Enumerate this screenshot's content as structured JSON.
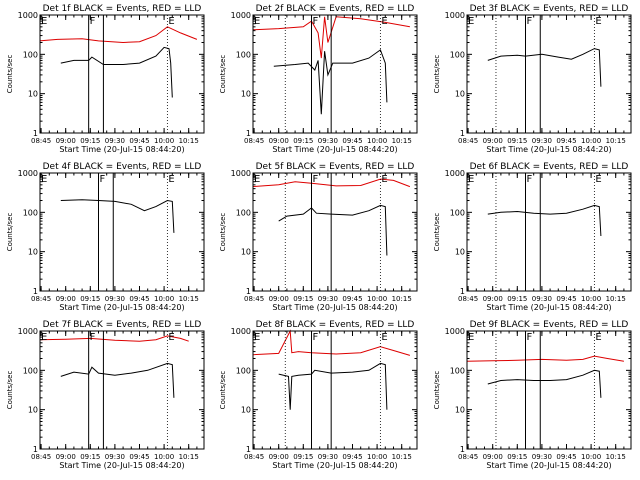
{
  "figure": {
    "background": "#ffffff",
    "axis_color": "#000000",
    "events_color": "#000000",
    "lld_color": "#dd0000"
  },
  "chart_data": [
    {
      "type": "line",
      "title": "Det 1f BLACK = Events, RED = LLD",
      "xlabel": "Start Time (20-Jul-15 08:44:20)",
      "ylabel": "Counts/sec",
      "yscale": "log",
      "ylim": [
        1,
        1000
      ],
      "y_ticks": [
        "1",
        "10",
        "100",
        "1000"
      ],
      "x_ticks": [
        "08:45",
        "09:00",
        "09:15",
        "09:30",
        "09:45",
        "10:00",
        "10:15"
      ],
      "xlim": [
        "08:44:20",
        "10:24:20"
      ],
      "markers": [
        {
          "label": "E",
          "time": "08:44:20",
          "style": "dotted"
        },
        {
          "label": "F",
          "time": "09:14:00",
          "style": "solid"
        },
        {
          "label": "",
          "time": "09:23:00",
          "style": "solid"
        },
        {
          "label": "E",
          "time": "10:02:00",
          "style": "dotted"
        }
      ],
      "series": [
        {
          "name": "Events",
          "color": "#000000",
          "x": [
            "08:57",
            "09:05",
            "09:14",
            "09:16",
            "09:23",
            "09:35",
            "09:45",
            "09:55",
            "10:00",
            "10:03",
            "10:04",
            "10:05"
          ],
          "y": [
            60,
            70,
            70,
            85,
            55,
            55,
            60,
            90,
            150,
            140,
            60,
            8
          ]
        },
        {
          "name": "LLD",
          "color": "#dd0000",
          "x": [
            "08:44",
            "08:55",
            "09:10",
            "09:20",
            "09:35",
            "09:45",
            "09:55",
            "10:02",
            "10:10",
            "10:20"
          ],
          "y": [
            220,
            240,
            250,
            220,
            200,
            210,
            300,
            500,
            350,
            240
          ]
        }
      ]
    },
    {
      "type": "line",
      "title": "Det 2f BLACK = Events, RED = LLD",
      "xlabel": "Start Time (20-Jul-15 08:44:20)",
      "ylabel": "Counts/sec",
      "yscale": "log",
      "ylim": [
        1,
        1000
      ],
      "y_ticks": [
        "1",
        "10",
        "100",
        "1000"
      ],
      "x_ticks": [
        "08:45",
        "09:00",
        "09:15",
        "09:30",
        "09:45",
        "10:00",
        "10:15"
      ],
      "xlim": [
        "08:44:20",
        "10:24:20"
      ],
      "markers": [
        {
          "label": "E",
          "time": "08:44:20",
          "style": "dotted"
        },
        {
          "label": "",
          "time": "09:04:00",
          "style": "dotted"
        },
        {
          "label": "F",
          "time": "09:20:00",
          "style": "solid"
        },
        {
          "label": "",
          "time": "09:32:00",
          "style": "solid"
        },
        {
          "label": "E",
          "time": "10:02:00",
          "style": "dotted"
        }
      ],
      "series": [
        {
          "name": "Events",
          "color": "#000000",
          "x": [
            "08:57",
            "09:10",
            "09:18",
            "09:22",
            "09:24",
            "09:26",
            "09:28",
            "09:30",
            "09:33",
            "09:45",
            "09:55",
            "10:02",
            "10:05",
            "10:06"
          ],
          "y": [
            50,
            55,
            60,
            40,
            70,
            3,
            120,
            30,
            60,
            60,
            80,
            130,
            60,
            6
          ]
        },
        {
          "name": "LLD",
          "color": "#dd0000",
          "x": [
            "08:44",
            "09:00",
            "09:15",
            "09:20",
            "09:24",
            "09:26",
            "09:28",
            "09:30",
            "09:35",
            "09:50",
            "10:05",
            "10:20"
          ],
          "y": [
            420,
            450,
            500,
            700,
            350,
            80,
            900,
            200,
            900,
            800,
            650,
            500
          ]
        }
      ]
    },
    {
      "type": "line",
      "title": "Det 3f BLACK = Events, RED = LLD",
      "xlabel": "Start Time (20-Jul-15 08:44:20)",
      "ylabel": "Counts/sec",
      "yscale": "log",
      "ylim": [
        1,
        1000
      ],
      "y_ticks": [
        "1",
        "10",
        "100",
        "1000"
      ],
      "x_ticks": [
        "08:45",
        "09:00",
        "09:15",
        "09:30",
        "09:45",
        "10:00",
        "10:15"
      ],
      "xlim": [
        "08:44:20",
        "10:24:20"
      ],
      "markers": [
        {
          "label": "E",
          "time": "08:44:20",
          "style": "dotted"
        },
        {
          "label": "",
          "time": "09:02:00",
          "style": "dotted"
        },
        {
          "label": "F",
          "time": "09:20:00",
          "style": "solid"
        },
        {
          "label": "",
          "time": "09:29:00",
          "style": "solid"
        },
        {
          "label": "E",
          "time": "10:02:00",
          "style": "dotted"
        }
      ],
      "series": [
        {
          "name": "Events",
          "color": "#000000",
          "x": [
            "08:57",
            "09:05",
            "09:15",
            "09:20",
            "09:30",
            "09:40",
            "09:48",
            "09:55",
            "10:02",
            "10:05",
            "10:06"
          ],
          "y": [
            70,
            90,
            95,
            90,
            100,
            85,
            75,
            100,
            140,
            130,
            15
          ]
        }
      ]
    },
    {
      "type": "line",
      "title": "Det 4f BLACK = Events, RED = LLD",
      "xlabel": "Start Time (20-Jul-15 08:44:20)",
      "ylabel": "Counts/sec",
      "yscale": "log",
      "ylim": [
        1,
        1000
      ],
      "y_ticks": [
        "1",
        "10",
        "100",
        "1000"
      ],
      "x_ticks": [
        "08:45",
        "09:00",
        "09:15",
        "09:30",
        "09:45",
        "10:00",
        "10:15"
      ],
      "xlim": [
        "08:44:20",
        "10:24:20"
      ],
      "markers": [
        {
          "label": "E",
          "time": "08:44:20",
          "style": "dotted"
        },
        {
          "label": "F",
          "time": "09:20:00",
          "style": "solid"
        },
        {
          "label": "",
          "time": "09:29:00",
          "style": "solid"
        },
        {
          "label": "E",
          "time": "10:02:00",
          "style": "dotted"
        }
      ],
      "series": [
        {
          "name": "Events",
          "color": "#000000",
          "x": [
            "08:57",
            "09:10",
            "09:20",
            "09:30",
            "09:40",
            "09:48",
            "09:55",
            "10:02",
            "10:05",
            "10:06"
          ],
          "y": [
            200,
            210,
            200,
            190,
            160,
            110,
            140,
            200,
            190,
            30
          ]
        }
      ]
    },
    {
      "type": "line",
      "title": "Det 5f BLACK = Events, RED = LLD",
      "xlabel": "Start Time (20-Jul-15 08:44:20)",
      "ylabel": "Counts/sec",
      "yscale": "log",
      "ylim": [
        1,
        1000
      ],
      "y_ticks": [
        "1",
        "10",
        "100",
        "1000"
      ],
      "x_ticks": [
        "08:45",
        "09:00",
        "09:15",
        "09:30",
        "09:45",
        "10:00",
        "10:15"
      ],
      "xlim": [
        "08:44:20",
        "10:24:20"
      ],
      "markers": [
        {
          "label": "E",
          "time": "08:44:20",
          "style": "dotted"
        },
        {
          "label": "",
          "time": "09:04:00",
          "style": "dotted"
        },
        {
          "label": "F",
          "time": "09:20:00",
          "style": "solid"
        },
        {
          "label": "",
          "time": "09:32:00",
          "style": "solid"
        },
        {
          "label": "E",
          "time": "10:02:00",
          "style": "dotted"
        }
      ],
      "series": [
        {
          "name": "Events",
          "color": "#000000",
          "x": [
            "09:00",
            "09:05",
            "09:15",
            "09:20",
            "09:23",
            "09:32",
            "09:45",
            "09:55",
            "10:02",
            "10:05",
            "10:06"
          ],
          "y": [
            60,
            80,
            90,
            130,
            95,
            90,
            85,
            110,
            150,
            140,
            8
          ]
        },
        {
          "name": "LLD",
          "color": "#dd0000",
          "x": [
            "08:44",
            "09:00",
            "09:10",
            "09:20",
            "09:35",
            "09:50",
            "10:02",
            "10:10",
            "10:20"
          ],
          "y": [
            450,
            500,
            600,
            550,
            470,
            480,
            700,
            650,
            450
          ]
        }
      ]
    },
    {
      "type": "line",
      "title": "Det 6f BLACK = Events, RED = LLD",
      "xlabel": "Start Time (20-Jul-15 08:44:20)",
      "ylabel": "Counts/sec",
      "yscale": "log",
      "ylim": [
        1,
        1000
      ],
      "y_ticks": [
        "1",
        "10",
        "100",
        "1000"
      ],
      "x_ticks": [
        "08:45",
        "09:00",
        "09:15",
        "09:30",
        "09:45",
        "10:00",
        "10:15"
      ],
      "xlim": [
        "08:44:20",
        "10:24:20"
      ],
      "markers": [
        {
          "label": "E",
          "time": "08:44:20",
          "style": "dotted"
        },
        {
          "label": "",
          "time": "09:02:00",
          "style": "dotted"
        },
        {
          "label": "F",
          "time": "09:20:00",
          "style": "solid"
        },
        {
          "label": "",
          "time": "09:29:00",
          "style": "solid"
        },
        {
          "label": "E",
          "time": "10:02:00",
          "style": "dotted"
        }
      ],
      "series": [
        {
          "name": "Events",
          "color": "#000000",
          "x": [
            "08:57",
            "09:05",
            "09:15",
            "09:25",
            "09:35",
            "09:45",
            "09:55",
            "10:02",
            "10:05",
            "10:06"
          ],
          "y": [
            90,
            100,
            105,
            95,
            90,
            95,
            120,
            150,
            140,
            25
          ]
        }
      ]
    },
    {
      "type": "line",
      "title": "Det 7f BLACK = Events, RED = LLD",
      "xlabel": "Start Time (20-Jul-15 08:44:20)",
      "ylabel": "Counts/sec",
      "yscale": "log",
      "ylim": [
        1,
        1000
      ],
      "y_ticks": [
        "1",
        "10",
        "100",
        "1000"
      ],
      "x_ticks": [
        "08:45",
        "09:00",
        "09:15",
        "09:30",
        "09:45",
        "10:00",
        "10:15"
      ],
      "xlim": [
        "08:44:20",
        "10:24:20"
      ],
      "markers": [
        {
          "label": "E",
          "time": "08:44:20",
          "style": "dotted"
        },
        {
          "label": "F",
          "time": "09:14:00",
          "style": "solid"
        },
        {
          "label": "",
          "time": "09:23:00",
          "style": "solid"
        },
        {
          "label": "E",
          "time": "10:02:00",
          "style": "dotted"
        }
      ],
      "series": [
        {
          "name": "Events",
          "color": "#000000",
          "x": [
            "08:57",
            "09:05",
            "09:14",
            "09:16",
            "09:20",
            "09:30",
            "09:40",
            "09:50",
            "10:02",
            "10:05",
            "10:06"
          ],
          "y": [
            70,
            90,
            80,
            120,
            85,
            75,
            85,
            100,
            150,
            140,
            20
          ]
        },
        {
          "name": "LLD",
          "color": "#dd0000",
          "x": [
            "08:44",
            "09:00",
            "09:15",
            "09:30",
            "09:45",
            "09:55",
            "10:02",
            "10:10",
            "10:15"
          ],
          "y": [
            600,
            620,
            650,
            580,
            550,
            600,
            750,
            650,
            550
          ]
        }
      ]
    },
    {
      "type": "line",
      "title": "Det 8f BLACK = Events, RED = LLD",
      "xlabel": "Start Time (20-Jul-15 08:44:20)",
      "ylabel": "Counts/sec",
      "yscale": "log",
      "ylim": [
        1,
        1000
      ],
      "y_ticks": [
        "1",
        "10",
        "100",
        "1000"
      ],
      "x_ticks": [
        "08:45",
        "09:00",
        "09:15",
        "09:30",
        "09:45",
        "10:00",
        "10:15"
      ],
      "xlim": [
        "08:44:20",
        "10:24:20"
      ],
      "markers": [
        {
          "label": "E",
          "time": "08:44:20",
          "style": "dotted"
        },
        {
          "label": "",
          "time": "09:04:00",
          "style": "dotted"
        },
        {
          "label": "F",
          "time": "09:20:00",
          "style": "solid"
        },
        {
          "label": "",
          "time": "09:32:00",
          "style": "solid"
        },
        {
          "label": "E",
          "time": "10:02:00",
          "style": "dotted"
        }
      ],
      "series": [
        {
          "name": "Events",
          "color": "#000000",
          "x": [
            "09:00",
            "09:06",
            "09:07",
            "09:08",
            "09:12",
            "09:20",
            "09:22",
            "09:32",
            "09:45",
            "09:55",
            "10:02",
            "10:05",
            "10:06"
          ],
          "y": [
            80,
            70,
            10,
            70,
            75,
            80,
            100,
            85,
            90,
            100,
            150,
            140,
            10
          ]
        },
        {
          "name": "LLD",
          "color": "#dd0000",
          "x": [
            "08:44",
            "09:00",
            "09:07",
            "09:08",
            "09:12",
            "09:20",
            "09:35",
            "09:50",
            "10:02",
            "10:10",
            "10:20"
          ],
          "y": [
            250,
            270,
            1000,
            280,
            300,
            280,
            260,
            280,
            400,
            320,
            240
          ]
        }
      ]
    },
    {
      "type": "line",
      "title": "Det 9f BLACK = Events, RED = LLD",
      "xlabel": "Start Time (20-Jul-15 08:44:20)",
      "ylabel": "Counts/sec",
      "yscale": "log",
      "ylim": [
        1,
        1000
      ],
      "y_ticks": [
        "1",
        "10",
        "100",
        "1000"
      ],
      "x_ticks": [
        "08:45",
        "09:00",
        "09:15",
        "09:30",
        "09:45",
        "10:00",
        "10:15"
      ],
      "xlim": [
        "08:44:20",
        "10:24:20"
      ],
      "markers": [
        {
          "label": "E",
          "time": "08:44:20",
          "style": "dotted"
        },
        {
          "label": "",
          "time": "09:02:00",
          "style": "dotted"
        },
        {
          "label": "F",
          "time": "09:20:00",
          "style": "solid"
        },
        {
          "label": "",
          "time": "09:29:00",
          "style": "solid"
        },
        {
          "label": "E",
          "time": "10:02:00",
          "style": "dotted"
        }
      ],
      "series": [
        {
          "name": "Events",
          "color": "#000000",
          "x": [
            "08:57",
            "09:05",
            "09:15",
            "09:25",
            "09:35",
            "09:45",
            "09:55",
            "10:02",
            "10:05",
            "10:06"
          ],
          "y": [
            45,
            55,
            58,
            55,
            55,
            58,
            75,
            100,
            95,
            20
          ]
        },
        {
          "name": "LLD",
          "color": "#dd0000",
          "x": [
            "08:44",
            "09:00",
            "09:15",
            "09:30",
            "09:45",
            "09:55",
            "10:02",
            "10:10",
            "10:20"
          ],
          "y": [
            170,
            175,
            180,
            190,
            180,
            190,
            230,
            200,
            170
          ]
        }
      ]
    }
  ]
}
